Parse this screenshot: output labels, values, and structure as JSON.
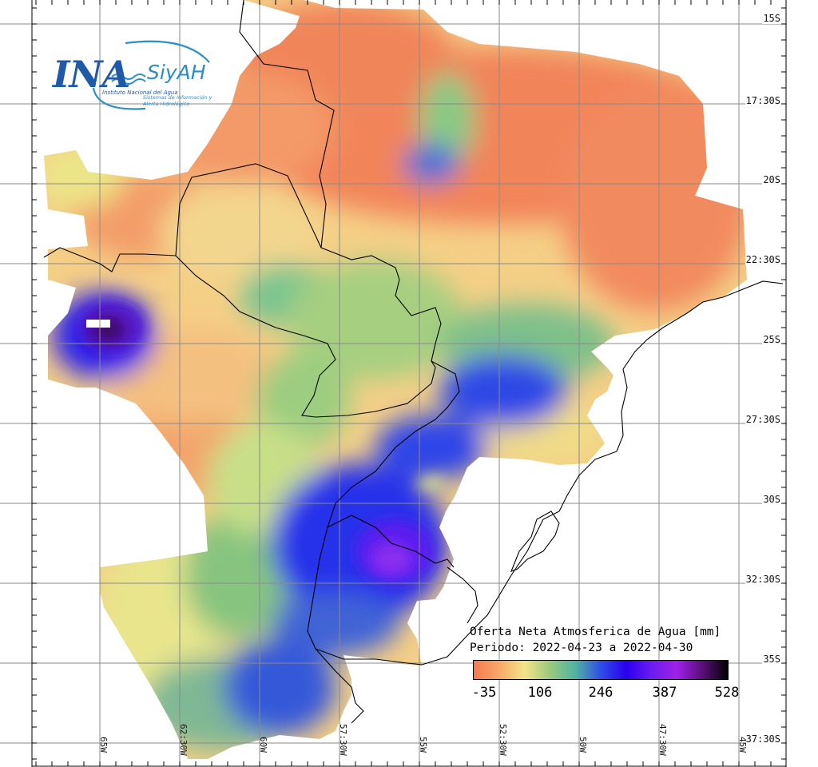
{
  "logo": {
    "brand": "INA",
    "system": "SiyAH",
    "organization": "Instituto Nacional del Agua",
    "system_name": "Sistemas de Información y Alerta Hidrológico"
  },
  "map": {
    "grid_color": "#888888",
    "border_color": "#000000",
    "lat_labels": [
      {
        "label": "15S",
        "lat": -15.0
      },
      {
        "label": "17:30S",
        "lat": -17.5
      },
      {
        "label": "20S",
        "lat": -20.0
      },
      {
        "label": "22:30S",
        "lat": -22.5
      },
      {
        "label": "25S",
        "lat": -25.0
      },
      {
        "label": "27:30S",
        "lat": -27.5
      },
      {
        "label": "30S",
        "lat": -30.0
      },
      {
        "label": "32:30S",
        "lat": -32.5
      },
      {
        "label": "35S",
        "lat": -35.0
      },
      {
        "label": "37:30S",
        "lat": -37.5
      }
    ],
    "lon_labels": [
      {
        "label": "65W",
        "lon": -65.0
      },
      {
        "label": "62:30W",
        "lon": -62.5
      },
      {
        "label": "60W",
        "lon": -60.0
      },
      {
        "label": "57:30W",
        "lon": -57.5
      },
      {
        "label": "55W",
        "lon": -55.0
      },
      {
        "label": "52:30W",
        "lon": -52.5
      },
      {
        "label": "50W",
        "lon": -50.0
      },
      {
        "label": "47:30W",
        "lon": -47.5
      },
      {
        "label": "45W",
        "lon": -45.0
      }
    ]
  },
  "legend": {
    "title": "Oferta Neta Atmosferica de Agua [mm]",
    "period": "Periodo: 2022-04-23 a 2022-04-30",
    "ticks": [
      "-35",
      "106",
      "246",
      "387",
      "528"
    ],
    "min": -35,
    "max": 528,
    "colors": [
      "#f47a4f",
      "#f6a869",
      "#f3e489",
      "#9bc97d",
      "#4fb3a4",
      "#2f4ee6",
      "#2a00ee",
      "#6a1df0",
      "#a020e8",
      "#5a0f7a",
      "#000000"
    ]
  }
}
